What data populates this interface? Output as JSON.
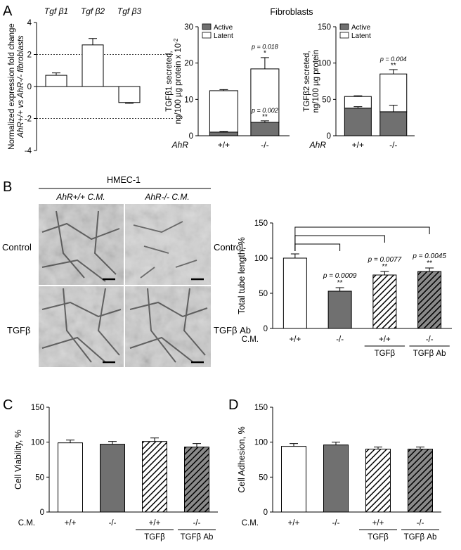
{
  "panel_labels": {
    "a": "A",
    "b": "B",
    "c": "C",
    "d": "D"
  },
  "shared": {
    "ahr_label": "AhR",
    "cm_label": "C.M.",
    "fibroblasts_title": "Fibroblasts"
  },
  "legend": {
    "active": "Active",
    "latent": "Latent"
  },
  "micro": {
    "cell_line": "HMEC-1",
    "col_left": "AhR+/+ C.M.",
    "col_right": "AhR-/- C.M.",
    "labels": {
      "control_left": "Control",
      "control_right": "Control",
      "tgfb": "TGFβ",
      "tgfb_ab": "TGFβ Ab"
    }
  },
  "colors": {
    "white": "#ffffff",
    "grey": "#707070",
    "black": "#000000"
  },
  "chart_data": [
    {
      "id": "panelA_expression",
      "type": "bar",
      "categories": [
        "Tgf β1",
        "Tgf β2",
        "Tgf β3"
      ],
      "values": [
        0.7,
        2.6,
        -1.0
      ],
      "errors": [
        0.15,
        0.4,
        0.05
      ],
      "ylabel_line1": "Normalized expression fold change",
      "ylabel_line2": "AhR+/+ vs AhR-/- fibroblasts",
      "ylim": [
        -4,
        4
      ],
      "yticks": [
        "-4",
        "-2",
        "0",
        "2",
        "4"
      ],
      "reference_lines": [
        2,
        -2
      ]
    },
    {
      "id": "panelA_tgfb1",
      "type": "stacked-bar",
      "categories": [
        "+/+",
        "-/-"
      ],
      "series": [
        {
          "name": "Active",
          "values": [
            1.0,
            3.7
          ],
          "errors": [
            0.2,
            0.4
          ]
        },
        {
          "name": "Latent",
          "values": [
            11.4,
            14.7
          ],
          "errors": [
            0.3,
            3.1
          ]
        }
      ],
      "ylabel_line1": "TGFβ1 secreted,",
      "ylabel_line2": "ng/100 µg protein x 10",
      "ylabel_sup": "-2",
      "ylim": [
        0,
        30
      ],
      "yticks": [
        "0",
        "10",
        "20",
        "30"
      ],
      "annotations": [
        {
          "category": "-/-",
          "p": "p = 0.018",
          "stars": "*",
          "at": 21.6
        },
        {
          "category": "-/-",
          "p": "p = 0.002",
          "stars": "**",
          "at": 4.1
        }
      ]
    },
    {
      "id": "panelA_tgfb2",
      "type": "stacked-bar",
      "categories": [
        "+/+",
        "-/-"
      ],
      "series": [
        {
          "name": "Active",
          "values": [
            38,
            33
          ],
          "errors": [
            2,
            9
          ]
        },
        {
          "name": "Latent",
          "values": [
            16,
            52
          ],
          "errors": [
            1,
            6
          ]
        }
      ],
      "ylabel_line1": "TGFβ2 secreted,",
      "ylabel_line2": "ng/100 µg protein",
      "ylim": [
        0,
        150
      ],
      "yticks": [
        "0",
        "50",
        "100",
        "150"
      ],
      "annotations": [
        {
          "category": "-/-",
          "p": "p = 0.004",
          "stars": "**",
          "at": 91
        }
      ]
    },
    {
      "id": "panelB_tube",
      "type": "bar",
      "categories": [
        "+/+",
        "-/-",
        "+/+",
        "-/-"
      ],
      "sublabels": [
        "",
        "",
        "TGFβ",
        "TGFβ Ab"
      ],
      "values": [
        100,
        53,
        76,
        81
      ],
      "errors": [
        6,
        5,
        5,
        5
      ],
      "fills": [
        "white",
        "grey",
        "hatch-white",
        "hatch-grey"
      ],
      "ylabel": "Total tube length, %",
      "ylim": [
        0,
        150
      ],
      "yticks": [
        "0",
        "50",
        "100",
        "150"
      ],
      "annotations": [
        {
          "category_index": 1,
          "p": "p = 0.0009",
          "stars": "**"
        },
        {
          "category_index": 2,
          "p": "p = 0.0077",
          "stars": "**"
        },
        {
          "category_index": 3,
          "p": "p = 0.0045",
          "stars": "**"
        }
      ]
    },
    {
      "id": "panelC_viability",
      "type": "bar",
      "categories": [
        "+/+",
        "-/-",
        "+/+",
        "-/-"
      ],
      "sublabels": [
        "",
        "",
        "TGFβ",
        "TGFβ Ab"
      ],
      "values": [
        99,
        97,
        101,
        93
      ],
      "errors": [
        4,
        4,
        5,
        5
      ],
      "fills": [
        "white",
        "grey",
        "hatch-white",
        "hatch-grey"
      ],
      "ylabel": "Cell Viability, %",
      "ylim": [
        0,
        150
      ],
      "yticks": [
        "0",
        "50",
        "100",
        "150"
      ]
    },
    {
      "id": "panelD_adhesion",
      "type": "bar",
      "categories": [
        "+/+",
        "-/-",
        "+/+",
        "-/-"
      ],
      "sublabels": [
        "",
        "",
        "TGFβ",
        "TGFβ Ab"
      ],
      "values": [
        94,
        96,
        90,
        90
      ],
      "errors": [
        4,
        4,
        3,
        3
      ],
      "fills": [
        "white",
        "grey",
        "hatch-white",
        "hatch-grey"
      ],
      "ylabel": "Cell Adhesion, %",
      "ylim": [
        0,
        150
      ],
      "yticks": [
        "0",
        "50",
        "100",
        "150"
      ]
    }
  ]
}
